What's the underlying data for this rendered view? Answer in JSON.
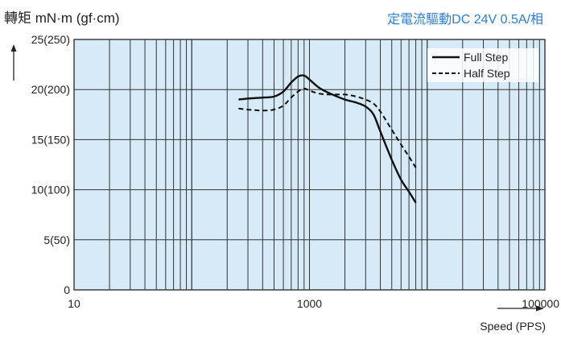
{
  "header": {
    "ylabel": "轉矩 mN·m (gf·cm)",
    "condition": "定電流驅動DC 24V 0.5A/相"
  },
  "chart_data": {
    "type": "line",
    "ylabel": "轉矩 mN·m (gf·cm)",
    "xlabel": "Speed (PPS)",
    "x_scale": "log",
    "xlim": [
      10,
      100000
    ],
    "ylim": [
      0,
      25
    ],
    "grid": true,
    "legend_position": "top-right",
    "x_tick_labels": [
      "10",
      "1000",
      "100000"
    ],
    "y_tick_labels": [
      "0",
      "5(50)",
      "10(100)",
      "15(150)",
      "20(200)",
      "25(250)"
    ],
    "y_ticks": [
      0,
      5,
      10,
      15,
      20,
      25
    ],
    "colors": {
      "plot_bg": "#d7eaf8",
      "grid": "#333333",
      "line": "#111111",
      "condition": "#2a7fd0"
    },
    "series": [
      {
        "name": "Full Step",
        "style": "solid",
        "x": [
          250,
          300,
          400,
          500,
          600,
          700,
          800,
          900,
          1000,
          1200,
          1500,
          2000,
          2500,
          3000,
          3500,
          4000,
          5000,
          6000,
          7000,
          8000
        ],
        "y": [
          19.0,
          19.1,
          19.2,
          19.3,
          19.8,
          20.7,
          21.3,
          21.4,
          21.0,
          20.2,
          19.6,
          19.0,
          18.7,
          18.3,
          17.5,
          15.8,
          13.0,
          11.0,
          9.8,
          8.7
        ]
      },
      {
        "name": "Half Step",
        "style": "dashed",
        "x": [
          250,
          300,
          400,
          500,
          600,
          700,
          800,
          900,
          1000,
          1200,
          1500,
          2000,
          2500,
          3000,
          3500,
          4000,
          5000,
          6000,
          7000,
          8000
        ],
        "y": [
          18.1,
          18.0,
          17.9,
          18.0,
          18.4,
          19.2,
          19.8,
          20.1,
          19.9,
          19.6,
          19.5,
          19.5,
          19.3,
          19.0,
          18.6,
          17.8,
          16.0,
          14.5,
          13.3,
          12.2
        ]
      }
    ]
  }
}
